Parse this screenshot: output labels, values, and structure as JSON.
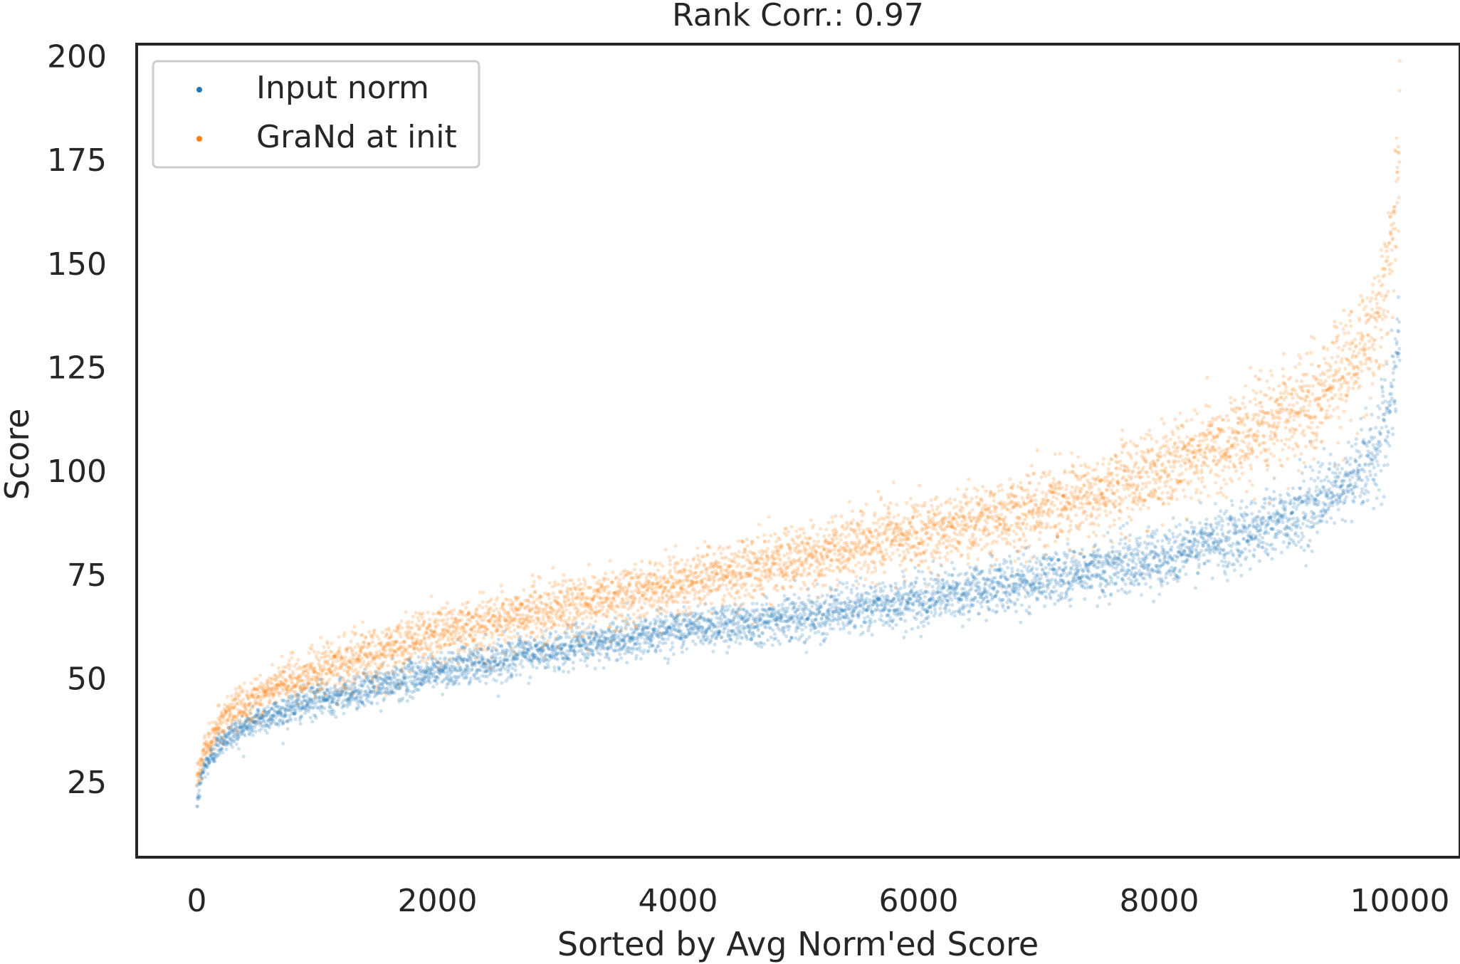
{
  "chart_data": {
    "type": "scatter",
    "title": "Rank Corr.: 0.97",
    "xlabel": "Sorted by Avg Norm'ed Score",
    "ylabel": "Score",
    "xlim": [
      -500,
      10500
    ],
    "ylim": [
      7,
      203
    ],
    "xticks": [
      0,
      2000,
      4000,
      6000,
      8000,
      10000
    ],
    "yticks": [
      25,
      50,
      75,
      100,
      125,
      150,
      175,
      200
    ],
    "grid": false,
    "legend_position": "top-left",
    "n_points_per_series": 10000,
    "series": [
      {
        "name": "Input norm",
        "color": "#1f77b4",
        "trend": [
          [
            0,
            20
          ],
          [
            50,
            28
          ],
          [
            200,
            35
          ],
          [
            500,
            40
          ],
          [
            1000,
            45
          ],
          [
            1500,
            48
          ],
          [
            2000,
            52
          ],
          [
            3000,
            57
          ],
          [
            4000,
            62
          ],
          [
            5000,
            65
          ],
          [
            6000,
            69
          ],
          [
            7000,
            74
          ],
          [
            8000,
            79
          ],
          [
            9000,
            88
          ],
          [
            9500,
            95
          ],
          [
            9800,
            105
          ],
          [
            9950,
            118
          ],
          [
            10000,
            136
          ]
        ],
        "spread": [
          [
            0,
            1.5
          ],
          [
            1000,
            2
          ],
          [
            4000,
            2.5
          ],
          [
            8000,
            3.5
          ],
          [
            9500,
            4.5
          ],
          [
            10000,
            6
          ]
        ]
      },
      {
        "name": "GraNd at init",
        "color": "#ff7f0e",
        "trend": [
          [
            0,
            25
          ],
          [
            50,
            32
          ],
          [
            200,
            40
          ],
          [
            500,
            46
          ],
          [
            1000,
            52
          ],
          [
            1500,
            56
          ],
          [
            2000,
            61
          ],
          [
            3000,
            67
          ],
          [
            4000,
            73
          ],
          [
            5000,
            79
          ],
          [
            6000,
            85
          ],
          [
            7000,
            91
          ],
          [
            8000,
            100
          ],
          [
            9000,
            112
          ],
          [
            9500,
            123
          ],
          [
            9800,
            135
          ],
          [
            9950,
            155
          ],
          [
            10000,
            180
          ]
        ],
        "spread": [
          [
            0,
            2
          ],
          [
            1000,
            3
          ],
          [
            4000,
            3.5
          ],
          [
            8000,
            5
          ],
          [
            9500,
            6.5
          ],
          [
            10000,
            9
          ]
        ],
        "outliers": [
          [
            10000,
            199
          ]
        ]
      }
    ]
  }
}
